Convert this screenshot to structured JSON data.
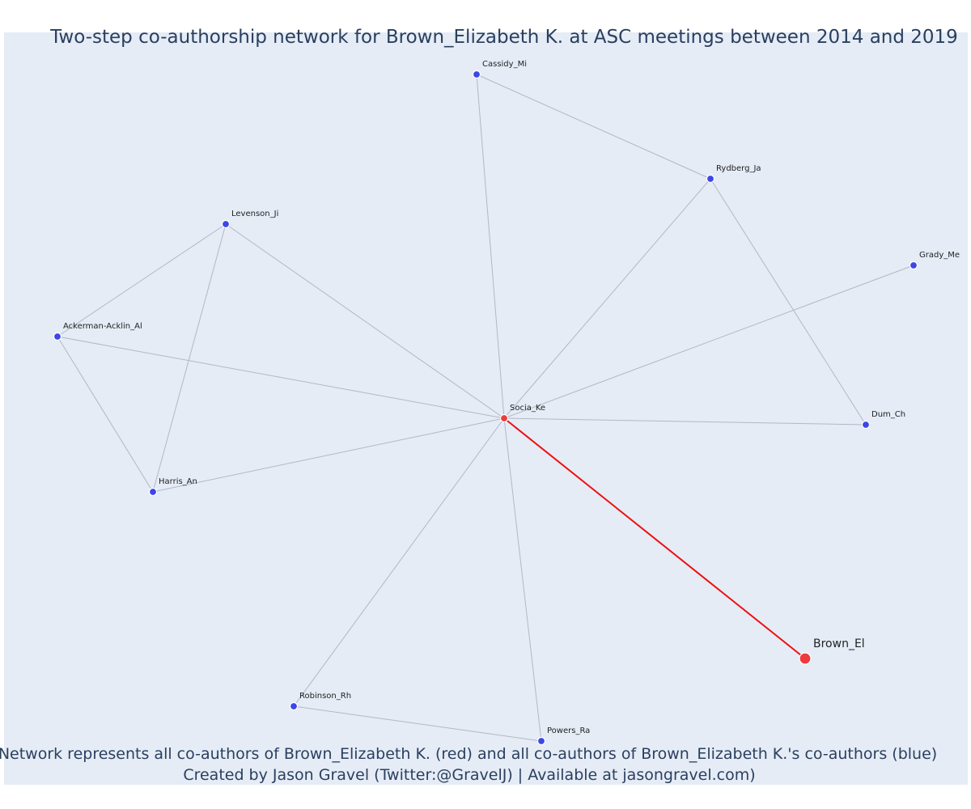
{
  "figure": {
    "title": "Two-step co-authorship network for Brown_Elizabeth K. at ASC meetings between 2014 and 2019",
    "caption_line1": "Network represents all co-authors of Brown_Elizabeth K. (red) and all co-authors of Brown_Elizabeth K.'s co-authors (blue)",
    "caption_line2": "Created by Jason Gravel (Twitter:@GravelJ) | Available at jasongravel.com)"
  },
  "colors": {
    "plot_background": "#e5ecf6",
    "edge": "#b4b7c5",
    "focal_edge": "#ee1111",
    "coauthor_node": "#3d46e8",
    "focal_node": "#ef3b3b",
    "text": "#2a3f5f"
  },
  "network": {
    "nodes": [
      {
        "id": "Brown_El",
        "label": "Brown_El",
        "group": "focal"
      },
      {
        "id": "Socia_Ke",
        "label": "Socia_Ke",
        "group": "first-step"
      },
      {
        "id": "Cassidy_Mi",
        "label": "Cassidy_Mi",
        "group": "second-step"
      },
      {
        "id": "Rydberg_Ja",
        "label": "Rydberg_Ja",
        "group": "second-step"
      },
      {
        "id": "Grady_Me",
        "label": "Grady_Me",
        "group": "second-step"
      },
      {
        "id": "Levenson_Ji",
        "label": "Levenson_Ji",
        "group": "second-step"
      },
      {
        "id": "Ackerman-Acklin_Al",
        "label": "Ackerman-Acklin_Al",
        "group": "second-step"
      },
      {
        "id": "Dum_Ch",
        "label": "Dum_Ch",
        "group": "second-step"
      },
      {
        "id": "Harris_An",
        "label": "Harris_An",
        "group": "second-step"
      },
      {
        "id": "Robinson_Rh",
        "label": "Robinson_Rh",
        "group": "second-step"
      },
      {
        "id": "Powers_Ra",
        "label": "Powers_Ra",
        "group": "second-step"
      }
    ],
    "edges": [
      {
        "source": "Brown_El",
        "target": "Socia_Ke",
        "focal": true
      },
      {
        "source": "Socia_Ke",
        "target": "Cassidy_Mi",
        "focal": false
      },
      {
        "source": "Socia_Ke",
        "target": "Rydberg_Ja",
        "focal": false
      },
      {
        "source": "Socia_Ke",
        "target": "Grady_Me",
        "focal": false
      },
      {
        "source": "Socia_Ke",
        "target": "Levenson_Ji",
        "focal": false
      },
      {
        "source": "Socia_Ke",
        "target": "Ackerman-Acklin_Al",
        "focal": false
      },
      {
        "source": "Socia_Ke",
        "target": "Dum_Ch",
        "focal": false
      },
      {
        "source": "Socia_Ke",
        "target": "Harris_An",
        "focal": false
      },
      {
        "source": "Socia_Ke",
        "target": "Robinson_Rh",
        "focal": false
      },
      {
        "source": "Socia_Ke",
        "target": "Powers_Ra",
        "focal": false
      },
      {
        "source": "Cassidy_Mi",
        "target": "Rydberg_Ja",
        "focal": false
      },
      {
        "source": "Rydberg_Ja",
        "target": "Dum_Ch",
        "focal": false
      },
      {
        "source": "Levenson_Ji",
        "target": "Ackerman-Acklin_Al",
        "focal": false
      },
      {
        "source": "Levenson_Ji",
        "target": "Harris_An",
        "focal": false
      },
      {
        "source": "Ackerman-Acklin_Al",
        "target": "Harris_An",
        "focal": false
      },
      {
        "source": "Robinson_Rh",
        "target": "Powers_Ra",
        "focal": false
      }
    ]
  }
}
